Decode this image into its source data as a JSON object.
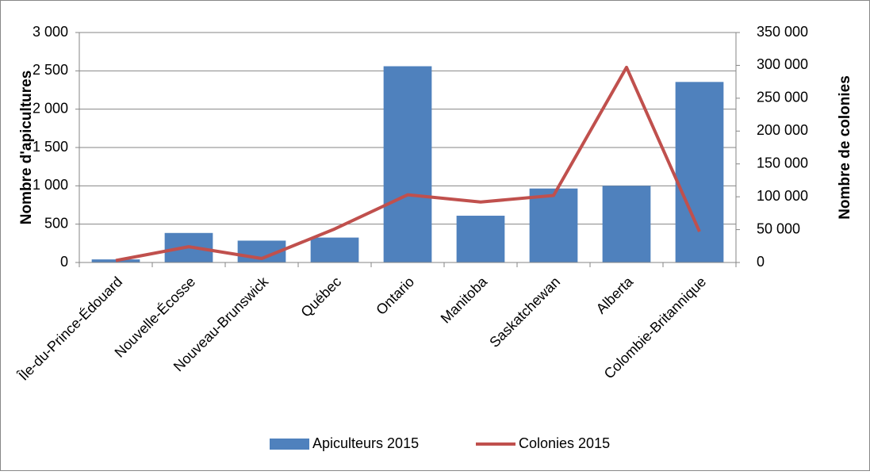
{
  "chart_data": {
    "type": "bar_line",
    "categories": [
      "Île-du-Prince-Édouard",
      "Nouvelle-Écosse",
      "Nouveau-Brunswick",
      "Québec",
      "Ontario",
      "Manitoba",
      "Saskatchewan",
      "Alberta",
      "Colombie-Britannique"
    ],
    "series": [
      {
        "name": "Apiculteurs 2015",
        "color": "#4f81bd",
        "type": "bar",
        "axis": "y",
        "values": [
          40,
          385,
          285,
          325,
          2560,
          610,
          965,
          1000,
          2355
        ]
      },
      {
        "name": "Colonies 2015",
        "color": "#c0504d",
        "type": "line",
        "axis": "y2",
        "values": [
          3000,
          24000,
          6000,
          51000,
          103000,
          92000,
          102000,
          297000,
          47000
        ]
      }
    ],
    "ylabel": "Nombre d'apicultures",
    "y2label": "Nombre de colonies",
    "ylim": [
      0,
      3000
    ],
    "yticks": [
      0,
      500,
      {
        "value": 1000,
        "label": "1 000"
      },
      {
        "value": 1500,
        "label": "1 500"
      },
      {
        "value": 2000,
        "label": "2 000"
      },
      {
        "value": 2500,
        "label": "2 500"
      },
      {
        "value": 3000,
        "label": "3 000"
      }
    ],
    "y2lim": [
      0,
      350000
    ],
    "y2ticks": [
      0,
      {
        "value": 50000,
        "label": "50 000"
      },
      {
        "value": 100000,
        "label": "100 000"
      },
      {
        "value": 150000,
        "label": "150 000"
      },
      {
        "value": 200000,
        "label": "200 000"
      },
      {
        "value": 250000,
        "label": "250 000"
      },
      {
        "value": 300000,
        "label": "300 000"
      },
      {
        "value": 350000,
        "label": "350 000"
      }
    ],
    "grid": true,
    "legend": "bottom"
  }
}
